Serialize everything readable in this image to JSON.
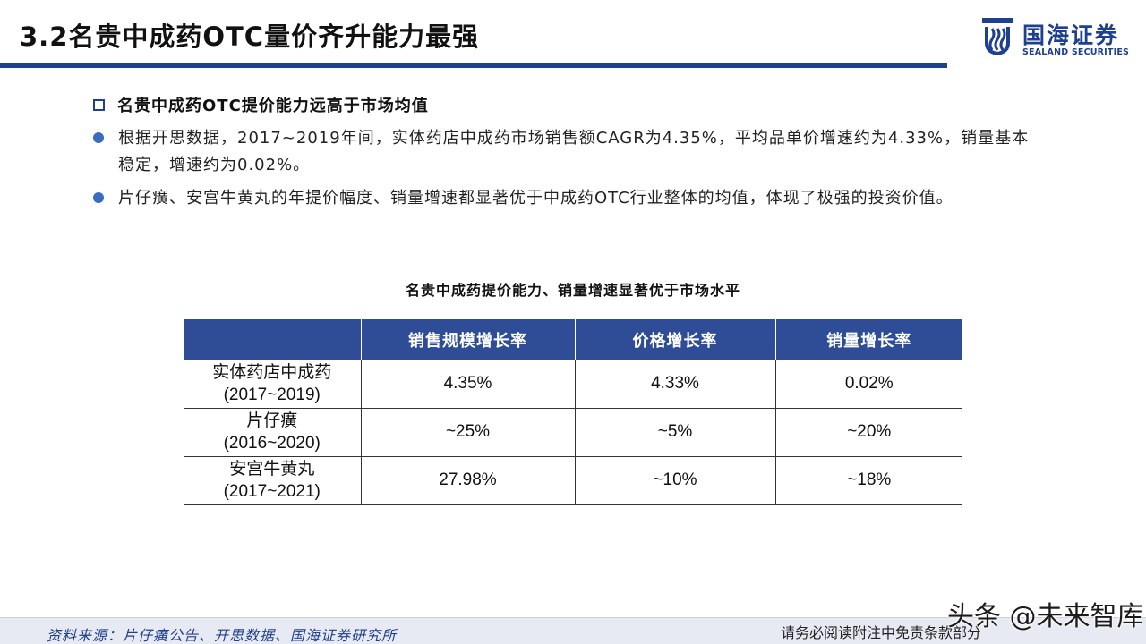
{
  "header": {
    "title": "3.2名贵中成药OTC量价齐升能力最强",
    "logo_cn": "国海证券",
    "logo_en": "SEALAND SECURITIES",
    "accent_color": "#1f3f8f"
  },
  "content": {
    "sub_heading": "名贵中成药OTC提价能力远高于市场均值",
    "bullets": [
      "根据开思数据，2017~2019年间，实体药店中成药市场销售额CAGR为4.35%，平均品单价增速约为4.33%，销量基本稳定，增速约为0.02%。",
      "片仔癀、安宫牛黄丸的年提价幅度、销量增速都显著优于中成药OTC行业整体的均值，体现了极强的投资价值。"
    ]
  },
  "table": {
    "title": "名贵中成药提价能力、销量增速显著优于市场水平",
    "header_color": "#2f4d96",
    "columns": [
      "",
      "销售规模增长率",
      "价格增长率",
      "销量增长率"
    ],
    "rows": [
      {
        "name": "实体药店中成药",
        "period": "(2017~2019)",
        "values": [
          "4.35%",
          "4.33%",
          "0.02%"
        ]
      },
      {
        "name": "片仔癀",
        "period": "(2016~2020)",
        "values": [
          "~25%",
          "~5%",
          "~20%"
        ]
      },
      {
        "name": "安宫牛黄丸",
        "period": "(2017~2021)",
        "values": [
          "27.98%",
          "~10%",
          "~18%"
        ]
      }
    ]
  },
  "footer": {
    "source": "资料来源：片仔癀公告、开思数据、国海证券研究所",
    "disclaimer": "请务必阅读附注中免责条款部分",
    "watermark": "头条 @未来智库"
  }
}
